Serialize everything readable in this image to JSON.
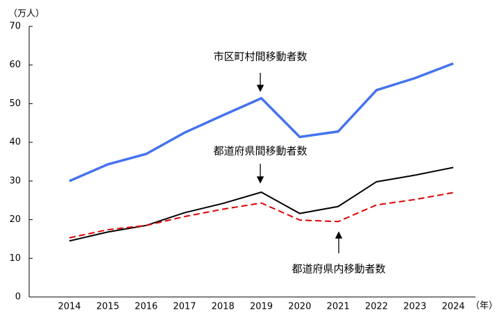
{
  "chart_data": {
    "type": "line",
    "y_unit": "（万人）",
    "x_unit": "（年）",
    "categories": [
      "2014",
      "2015",
      "2016",
      "2017",
      "2018",
      "2019",
      "2020",
      "2021",
      "2022",
      "2023",
      "2024"
    ],
    "series": [
      {
        "name": "市区町村間移動者数",
        "color": "#4472f0",
        "dash": "none",
        "width": 3.5,
        "values": [
          30,
          34.3,
          37,
          42.5,
          47,
          51.4,
          41.4,
          42.8,
          53.5,
          56.6,
          60.4
        ]
      },
      {
        "name": "都道府県間移動者数",
        "color": "#000000",
        "dash": "none",
        "width": 2,
        "values": [
          14.5,
          16.8,
          18.5,
          21.8,
          24.2,
          27.1,
          21.6,
          23.4,
          29.8,
          31.5,
          33.5
        ]
      },
      {
        "name": "都道府県内移動者数",
        "color": "#e00000",
        "dash": "9 5",
        "width": 2,
        "values": [
          15.3,
          17.4,
          18.5,
          20.8,
          22.7,
          24.3,
          19.9,
          19.5,
          23.8,
          25.2,
          27.0
        ]
      }
    ],
    "ylim": [
      0,
      70
    ],
    "yticks": [
      0,
      10,
      20,
      30,
      40,
      50,
      60,
      70
    ],
    "grid": false
  }
}
